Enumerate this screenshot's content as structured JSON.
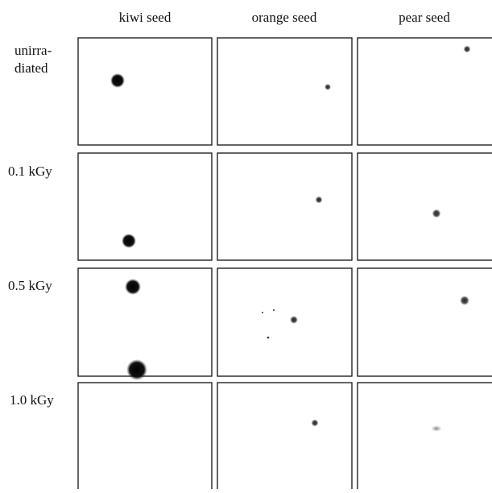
{
  "column_headers": [
    "kiwi seed",
    "orange seed",
    "pear seed"
  ],
  "row_labels": [
    [
      "unirra-",
      "diated"
    ],
    [
      "0.1 kGy"
    ],
    [
      "0.5 kGy"
    ],
    [
      "1.0 kGy"
    ]
  ]
}
